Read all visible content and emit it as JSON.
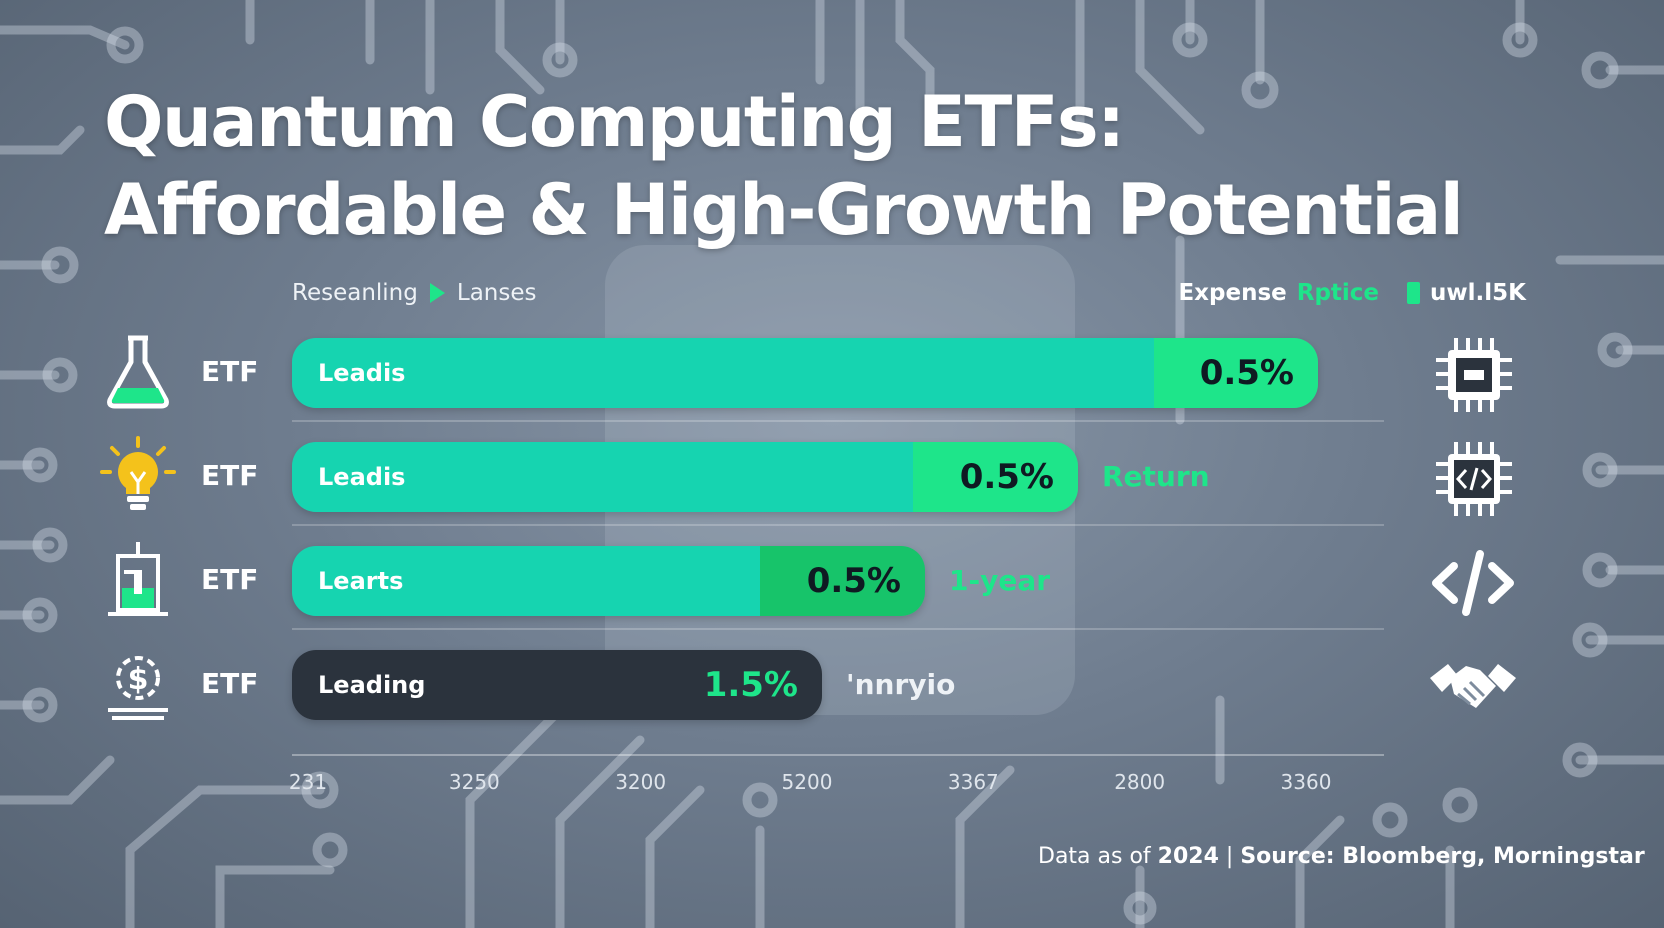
{
  "title_line1": "Quantum Computing ETFs:",
  "title_line2": "Affordable & High-Growth Potential",
  "legend": {
    "left_text1": "Reseanling",
    "left_text2": "Lanses",
    "right_text1": "Expense",
    "right_text2": "Rptice",
    "right_text3": "uwl.l5K",
    "accent": "#1ee58a"
  },
  "colors": {
    "teal": "#16d4b0",
    "green": "#1ee58a",
    "dark_green": "#17c46a",
    "dark": "#2b333d"
  },
  "chart_data": {
    "type": "bar",
    "orientation": "horizontal",
    "x_tick_labels": [
      "231",
      "3250",
      "3200",
      "5200",
      "3367",
      "2800",
      "3360"
    ],
    "rows": [
      {
        "etf": "ETF",
        "bar_label": "Leadis",
        "value_label": "0.5%",
        "side_label": "",
        "length_fraction": 0.94,
        "split_fraction": 0.84,
        "left_icon": "flask-icon",
        "right_icon": "chip-icon"
      },
      {
        "etf": "ETF",
        "bar_label": "Leadis",
        "value_label": "0.5%",
        "side_label": "Return",
        "length_fraction": 0.72,
        "split_fraction": 0.79,
        "left_icon": "lightbulb-icon",
        "right_icon": "code-chip-icon"
      },
      {
        "etf": "ETF",
        "bar_label": "Learts",
        "value_label": "0.5%",
        "side_label": "1-year",
        "length_fraction": 0.58,
        "split_fraction": 0.74,
        "left_icon": "lab-stand-icon",
        "right_icon": "code-brackets-icon"
      },
      {
        "etf": "ETF",
        "bar_label": "Leading",
        "value_label": "1.5%",
        "side_label": "'nnryio",
        "length_fraction": 0.485,
        "split_fraction": 1.0,
        "left_icon": "dollar-gear-icon",
        "right_icon": "handshake-icon"
      }
    ]
  },
  "source_prefix": "Data as of",
  "source_year": "2024",
  "source_sep": "|",
  "source_text": "Source: Bloomberg, Morningstar"
}
